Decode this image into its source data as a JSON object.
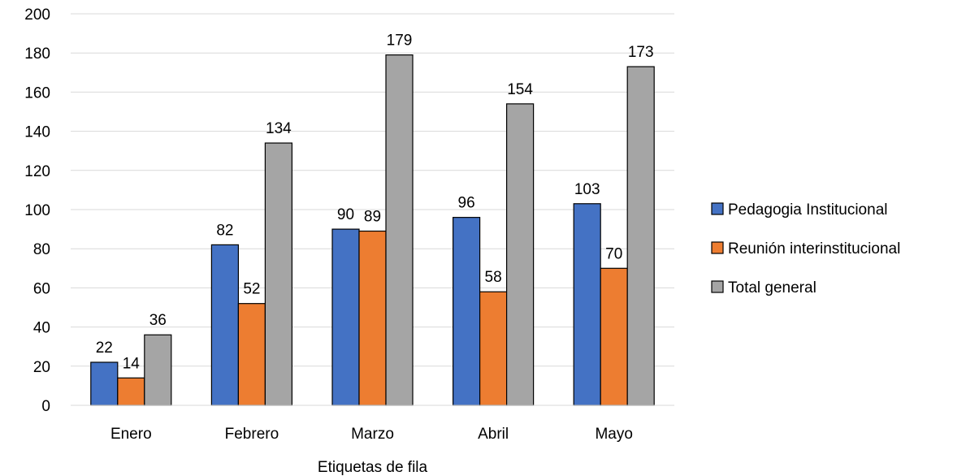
{
  "chart_data": {
    "type": "bar",
    "title": "",
    "xlabel": "Etiquetas de fila",
    "ylabel": "",
    "ylim": [
      0,
      200
    ],
    "yticks": [
      0,
      20,
      40,
      60,
      80,
      100,
      120,
      140,
      160,
      180,
      200
    ],
    "grid": true,
    "legend_position": "right",
    "categories": [
      "Enero",
      "Febrero",
      "Marzo",
      "Abril",
      "Mayo"
    ],
    "series": [
      {
        "name": "Pedagogia Institucional",
        "color": "#4472C4",
        "values": [
          22,
          82,
          90,
          96,
          103
        ]
      },
      {
        "name": "Reunión interinstitucional",
        "color": "#ED7D31",
        "values": [
          14,
          52,
          89,
          58,
          70
        ]
      },
      {
        "name": "Total general",
        "color": "#A5A5A5",
        "values": [
          36,
          134,
          179,
          154,
          173
        ]
      }
    ]
  }
}
